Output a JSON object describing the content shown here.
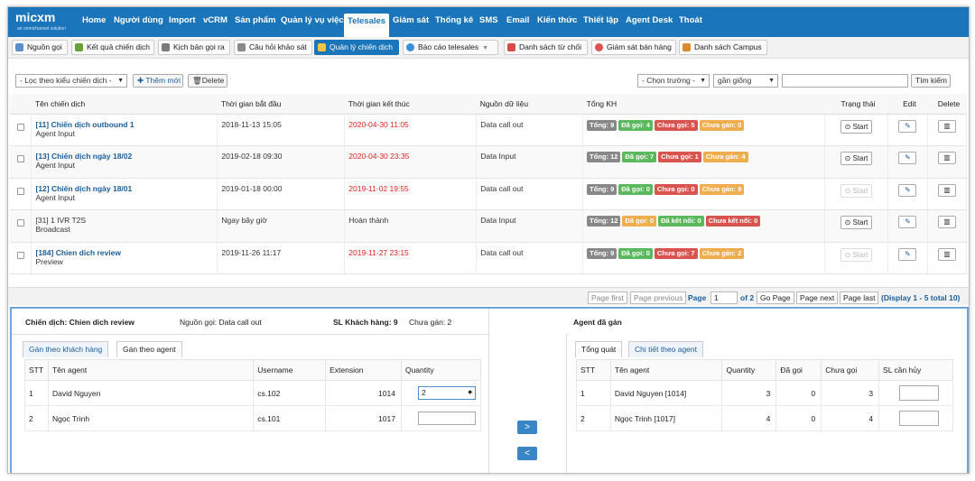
{
  "logo": {
    "main": "micxm",
    "sub": "an omnichannel solution"
  },
  "nav": [
    {
      "id": "home",
      "label": "Home"
    },
    {
      "id": "users",
      "label": "Người dùng"
    },
    {
      "id": "import",
      "label": "Import"
    },
    {
      "id": "vcrm",
      "label": "vCRM"
    },
    {
      "id": "products",
      "label": "Sản phẩm"
    },
    {
      "id": "cases",
      "label": "Quản lý vụ việc"
    },
    {
      "id": "telesales",
      "label": "Telesales"
    },
    {
      "id": "monitor",
      "label": "Giám sát"
    },
    {
      "id": "stats",
      "label": "Thống kê"
    },
    {
      "id": "sms",
      "label": "SMS"
    },
    {
      "id": "email",
      "label": "Email"
    },
    {
      "id": "knowledge",
      "label": "Kiến thức"
    },
    {
      "id": "settings",
      "label": "Thiết lập"
    },
    {
      "id": "agentdesk",
      "label": "Agent Desk"
    },
    {
      "id": "exit",
      "label": "Thoát"
    }
  ],
  "toolbar": [
    {
      "id": "sources",
      "label": "Nguồn gọi"
    },
    {
      "id": "results",
      "label": "Kết quả chiến dịch"
    },
    {
      "id": "scripts",
      "label": "Kịch bản gọi ra"
    },
    {
      "id": "survey",
      "label": "Câu hỏi khảo sát"
    },
    {
      "id": "manage",
      "label": "Quản lý chiến dịch"
    },
    {
      "id": "report",
      "label": "Báo cáo telesales"
    },
    {
      "id": "denylist",
      "label": "Danh sách từ chối"
    },
    {
      "id": "salesmon",
      "label": "Giám sát bán hàng"
    },
    {
      "id": "campus",
      "label": "Danh sách Campus"
    }
  ],
  "filter": {
    "type_select": "- Lọc theo kiểu chiến dịch -",
    "add_label": "Thêm mới",
    "delete_label": "Delete",
    "field_select": "- Chọn trường -",
    "op_select": "gần giống",
    "search_value": "",
    "search_label": "Tìm kiếm"
  },
  "table": {
    "headers": {
      "name": "Tên chiến dịch",
      "start": "Thời gian bắt đầu",
      "end": "Thời gian kết thúc",
      "source": "Nguồn dữ liệu",
      "total": "Tổng KH",
      "status": "Trạng thái",
      "edit": "Edit",
      "delete": "Delete"
    },
    "rows": [
      {
        "name": "[11] Chiến dịch outbound 1",
        "type": "Agent Input",
        "start": "2018-11-13 15:05",
        "end": "2020-04-30 11:05",
        "end_red": true,
        "source": "Data call out",
        "badges": [
          {
            "t": "Tổng: 9",
            "c": "gray"
          },
          {
            "t": "Đã gọi: 4",
            "c": "green"
          },
          {
            "t": "Chưa gọi: 5",
            "c": "red"
          },
          {
            "t": "Chưa gán: 0",
            "c": "orange"
          }
        ],
        "status": "Start",
        "enabled": true,
        "link": true
      },
      {
        "name": "[13] Chiến dịch ngày 18/02",
        "type": "Agent Input",
        "start": "2019-02-18 09:30",
        "end": "2020-04-30 23:35",
        "end_red": true,
        "source": "Data Input",
        "badges": [
          {
            "t": "Tổng: 12",
            "c": "gray"
          },
          {
            "t": "Đã gọi: 7",
            "c": "green"
          },
          {
            "t": "Chưa gọi: 1",
            "c": "red"
          },
          {
            "t": "Chưa gán: 4",
            "c": "orange"
          }
        ],
        "status": "Start",
        "enabled": true,
        "link": true
      },
      {
        "name": "[12] Chiến dịch ngày 18/01",
        "type": "Agent Input",
        "start": "2019-01-18 00:00",
        "end": "2019-11-02 19:55",
        "end_red": true,
        "source": "Data call out",
        "badges": [
          {
            "t": "Tổng: 9",
            "c": "gray"
          },
          {
            "t": "Đã gọi: 0",
            "c": "green"
          },
          {
            "t": "Chưa gọi: 0",
            "c": "red"
          },
          {
            "t": "Chưa gán: 9",
            "c": "orange"
          }
        ],
        "status": "Start",
        "enabled": false,
        "link": true
      },
      {
        "name": "[31] 1 IVR T2S",
        "type": "Broadcast",
        "start": "Ngay bây giờ",
        "end": "Hoàn thành",
        "end_red": false,
        "source": "Data Input",
        "badges": [
          {
            "t": "Tổng: 12",
            "c": "gray"
          },
          {
            "t": "Đã gọi: 0",
            "c": "orange"
          },
          {
            "t": "Đã kết nối: 0",
            "c": "green"
          },
          {
            "t": "Chưa kết nối: 0",
            "c": "red"
          }
        ],
        "status": "Start",
        "enabled": true,
        "link": false
      },
      {
        "name": "[184] Chien dich review",
        "type": "Preview",
        "start": "2019-11-26 11:17",
        "end": "2019-11-27 23:15",
        "end_red": true,
        "source": "Data call out",
        "badges": [
          {
            "t": "Tổng: 9",
            "c": "gray"
          },
          {
            "t": "Đã gọi: 0",
            "c": "green"
          },
          {
            "t": "Chưa gọi: 7",
            "c": "red"
          },
          {
            "t": "Chưa gán: 2",
            "c": "orange"
          }
        ],
        "status": "Start",
        "enabled": false,
        "link": true
      }
    ]
  },
  "pager": {
    "first": "Page first",
    "prev": "Page previous",
    "page_label": "Page",
    "page_value": "1",
    "of": "of 2",
    "go": "Go Page",
    "next": "Page next",
    "last": "Page last",
    "display": "(Display 1 - 5 total 10)"
  },
  "detail": {
    "campaign": "Chiến dịch: Chien dich review",
    "source": "Nguồn gọi: Data call out",
    "customers": "SL Khách hàng: 9",
    "unassigned": "Chưa gán: 2",
    "assigned_title": "Agent đã gán",
    "left_tabs": [
      "Gán theo khách hàng",
      "Gán theo agent"
    ],
    "left_headers": {
      "stt": "STT",
      "agent": "Tên agent",
      "username": "Username",
      "ext": "Extension",
      "qty": "Quantity"
    },
    "left_rows": [
      {
        "stt": "1",
        "agent": "David Nguyen",
        "username": "cs.102",
        "ext": "1014",
        "qty": "2"
      },
      {
        "stt": "2",
        "agent": "Ngọc Trinh",
        "username": "cs.101",
        "ext": "1017",
        "qty": ""
      }
    ],
    "right_tabs": [
      "Tổng quát",
      "Chi tiết theo agent"
    ],
    "right_headers": {
      "stt": "STT",
      "agent": "Tên agent",
      "qty": "Quantity",
      "called": "Đã gọi",
      "notcalled": "Chưa gọi",
      "cancel": "SL cần hủy"
    },
    "right_rows": [
      {
        "stt": "1",
        "agent": "David Nguyen [1014]",
        "qty": "3",
        "called": "0",
        "notcalled": "3"
      },
      {
        "stt": "2",
        "agent": "Ngọc Trinh [1017]",
        "qty": "4",
        "called": "0",
        "notcalled": "4"
      }
    ]
  }
}
